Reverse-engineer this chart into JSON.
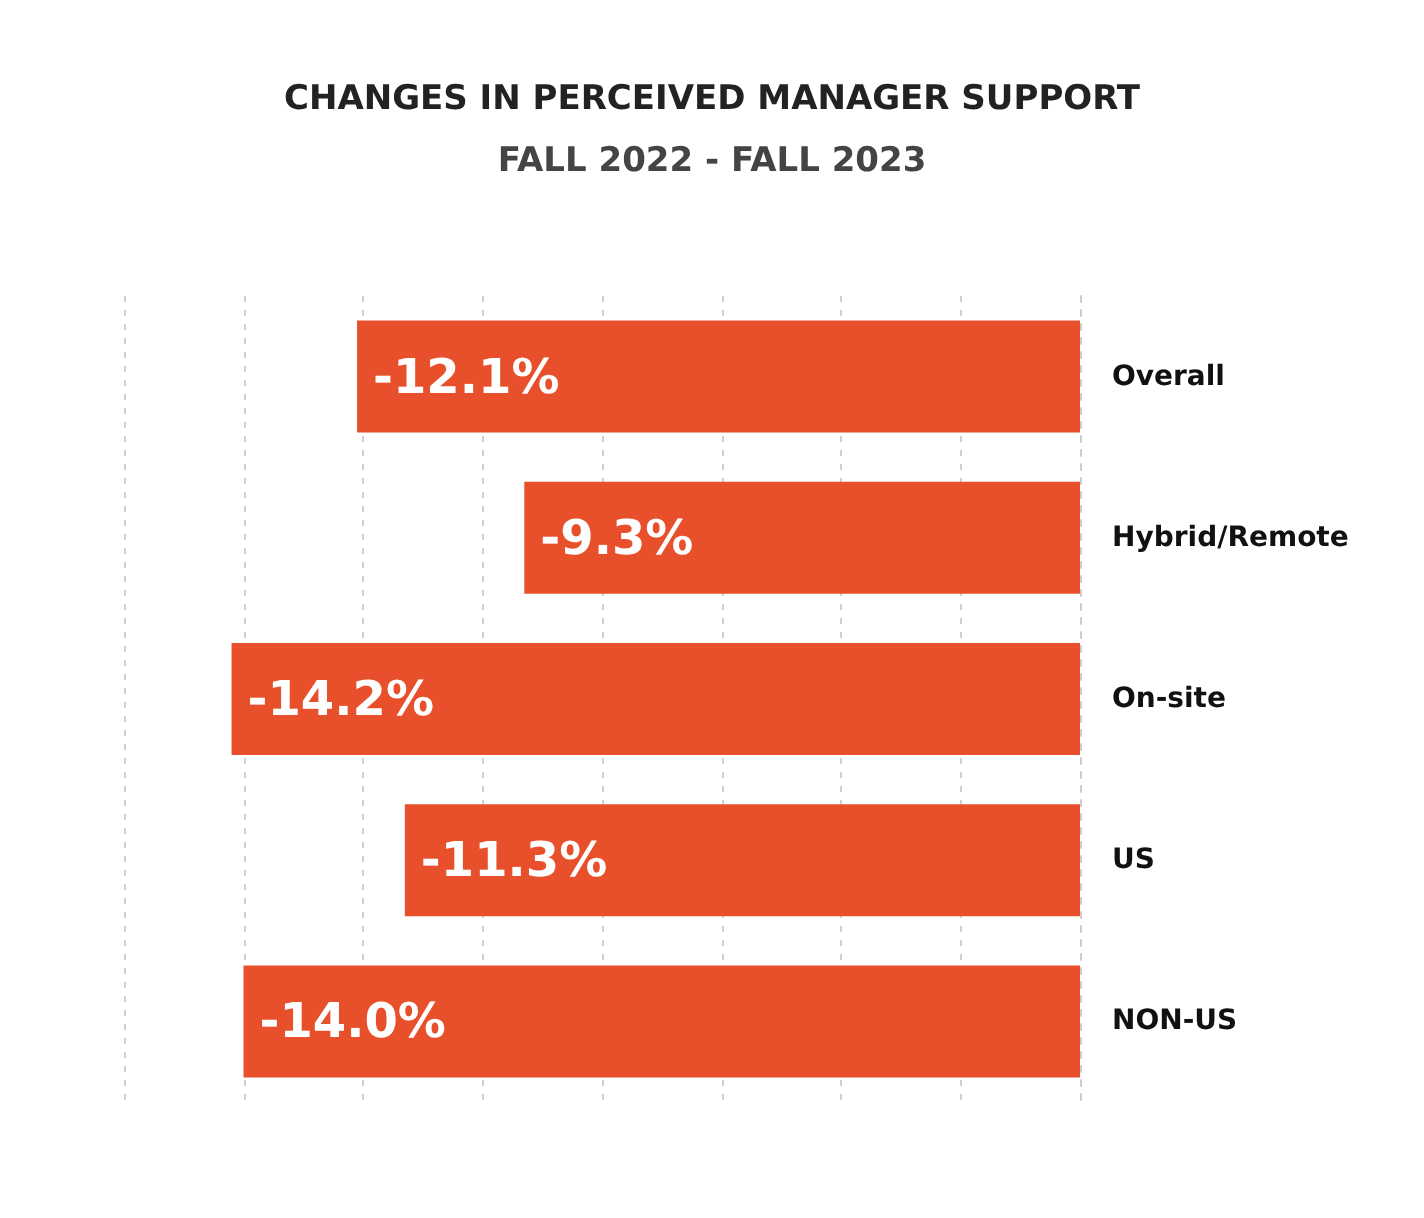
{
  "chart_data": {
    "type": "bar",
    "orientation": "horizontal",
    "title": "CHANGES IN PERCEIVED MANAGER SUPPORT",
    "subtitle": "FALL 2022 - FALL 2023",
    "categories": [
      "Overall",
      "Hybrid/Remote",
      "On-site",
      "US",
      "NON-US"
    ],
    "values": [
      -12.1,
      -9.3,
      -14.2,
      -11.3,
      -14.0
    ],
    "value_labels": [
      "-12.1%",
      "-9.3%",
      "-14.2%",
      "-11.3%",
      "-14.0%"
    ],
    "color": "#e8502b",
    "xlim": [
      -16,
      0
    ],
    "xticks": [
      {
        "value": -16,
        "label": null
      },
      {
        "value": -14,
        "label": null
      },
      {
        "value": -12,
        "label": null
      },
      {
        "value": -10,
        "label": null
      },
      {
        "value": -8,
        "label": null
      },
      {
        "value": -6,
        "label": null
      },
      {
        "value": -4,
        "label": null
      },
      {
        "value": -2,
        "label": null
      },
      {
        "value": 0,
        "label": null
      }
    ],
    "tick_labels": "y",
    "grid": "x"
  }
}
